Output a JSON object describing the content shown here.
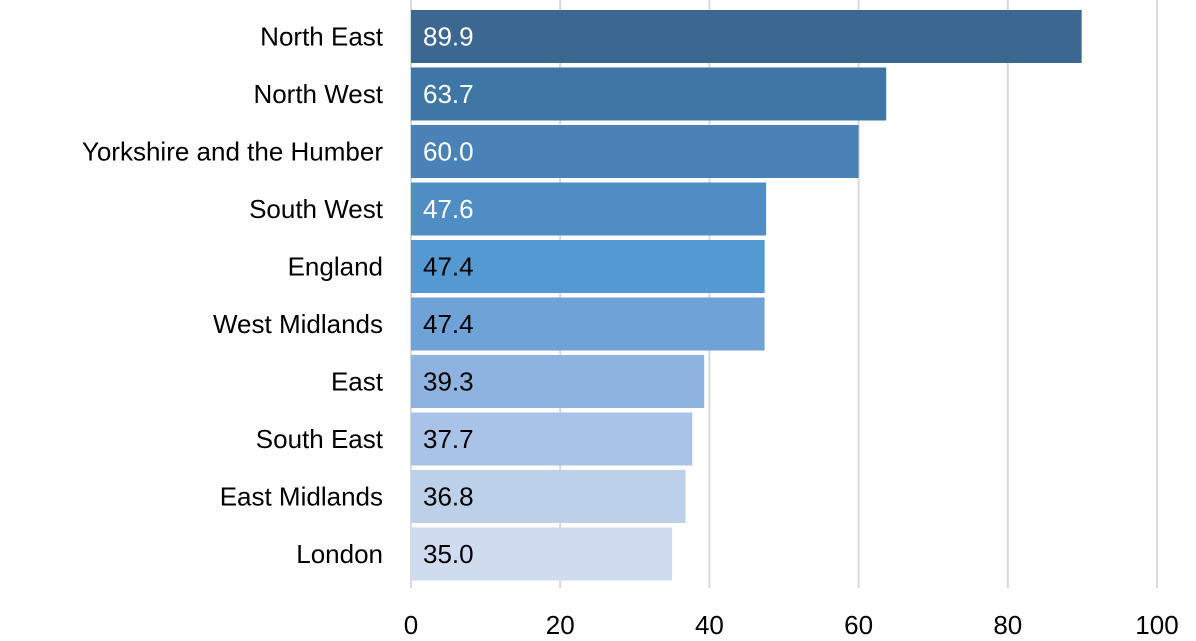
{
  "chart_data": {
    "type": "bar",
    "orientation": "horizontal",
    "categories": [
      "North East",
      "North West",
      "Yorkshire and the Humber",
      "South West",
      "England",
      "West Midlands",
      "East",
      "South East",
      "East Midlands",
      "London"
    ],
    "values": [
      89.9,
      63.7,
      60.0,
      47.6,
      47.4,
      47.4,
      39.3,
      37.7,
      36.8,
      35.0
    ],
    "value_labels": [
      "89.9",
      "63.7",
      "60.0",
      "47.6",
      "47.4",
      "47.4",
      "39.3",
      "37.7",
      "36.8",
      "35.0"
    ],
    "bar_colors": [
      "#3b6790",
      "#3e77a6",
      "#4a82b8",
      "#4f8dc4",
      "#5499d2",
      "#6fa2d6",
      "#8fb3e0",
      "#a8c3e7",
      "#bcd0ea",
      "#cfdcef"
    ],
    "label_colors": [
      "#ffffff",
      "#ffffff",
      "#ffffff",
      "#ffffff",
      "#000000",
      "#000000",
      "#000000",
      "#000000",
      "#000000",
      "#000000"
    ],
    "xlim": [
      0,
      100
    ],
    "x_ticks": [
      "0",
      "20",
      "40",
      "60",
      "80",
      "100"
    ],
    "grid": "vertical",
    "legend": "none"
  }
}
